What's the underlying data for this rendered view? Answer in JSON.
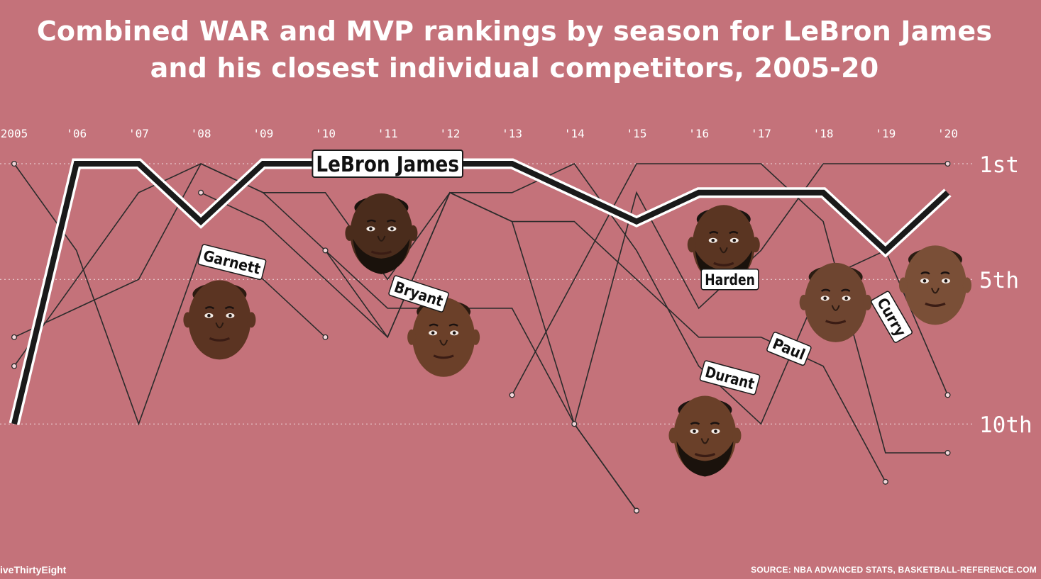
{
  "title_line1": "Combined WAR and MVP rankings by season for LeBron James",
  "title_line2": "and his closest individual competitors, 2005-20",
  "footer_left": "iveThirtyEight",
  "footer_right": "SOURCE: NBA ADVANCED STATS, BASKETBALL-REFERENCE.COM",
  "colors": {
    "background": "#c4727a",
    "lebron_line": "#1a1a1a",
    "competitor_line": "#2b2b2b",
    "label_fill": "#ffffff",
    "gridline": "#ffffff",
    "text": "#ffffff"
  },
  "chart_data": {
    "type": "line",
    "x_tick_labels": [
      "2005",
      "'06",
      "'07",
      "'08",
      "'09",
      "'10",
      "'11",
      "'12",
      "'13",
      "'14",
      "'15",
      "'16",
      "'17",
      "'18",
      "'19",
      "'20"
    ],
    "y_tick_labels": [
      {
        "rank": 1,
        "label": "1st"
      },
      {
        "rank": 5,
        "label": "5th"
      },
      {
        "rank": 10,
        "label": "10th"
      }
    ],
    "ylim": [
      1,
      13
    ],
    "y_inverted": true,
    "series": [
      {
        "name": "LeBron James",
        "highlight": true,
        "points": [
          [
            2005,
            10
          ],
          [
            2006,
            1
          ],
          [
            2007,
            1
          ],
          [
            2008,
            3
          ],
          [
            2009,
            1
          ],
          [
            2010,
            1
          ],
          [
            2011,
            1
          ],
          [
            2012,
            1
          ],
          [
            2013,
            1
          ],
          [
            2014,
            2
          ],
          [
            2015,
            3
          ],
          [
            2016,
            2
          ],
          [
            2017,
            2
          ],
          [
            2018,
            2
          ],
          [
            2019,
            4
          ],
          [
            2020,
            2
          ]
        ]
      },
      {
        "name": "Garnett",
        "points": [
          [
            2005,
            1
          ],
          [
            2006,
            4
          ],
          [
            2007,
            10
          ],
          [
            2008,
            4
          ],
          [
            2009,
            5
          ],
          [
            2010,
            7
          ]
        ]
      },
      {
        "name": "Bryant",
        "points": [
          [
            2005,
            8
          ],
          [
            2006,
            5
          ],
          [
            2007,
            2
          ],
          [
            2008,
            1
          ],
          [
            2009,
            2
          ],
          [
            2010,
            2
          ],
          [
            2011,
            5
          ],
          [
            2012,
            2
          ],
          [
            2013,
            3
          ],
          [
            2014,
            10
          ],
          [
            2015,
            13
          ]
        ]
      },
      {
        "name": "",
        "points": [
          [
            2005,
            7
          ],
          [
            2006,
            6
          ],
          [
            2007,
            5
          ],
          [
            2008,
            1
          ],
          [
            2009,
            2
          ],
          [
            2010,
            4
          ],
          [
            2011,
            6
          ],
          [
            2012,
            6
          ],
          [
            2013,
            6
          ],
          [
            2014,
            10
          ],
          [
            2015,
            13
          ]
        ]
      },
      {
        "name": "",
        "points": [
          [
            2008,
            2
          ],
          [
            2009,
            3
          ],
          [
            2010,
            5
          ],
          [
            2011,
            7
          ],
          [
            2012,
            2
          ],
          [
            2013,
            3
          ],
          [
            2014,
            3
          ],
          [
            2015,
            5
          ],
          [
            2016,
            7
          ],
          [
            2017,
            7
          ],
          [
            2018,
            8
          ],
          [
            2019,
            12
          ]
        ]
      },
      {
        "name": "",
        "points": [
          [
            2010,
            4
          ],
          [
            2011,
            7
          ],
          [
            2012,
            2
          ],
          [
            2013,
            2
          ],
          [
            2014,
            1
          ],
          [
            2015,
            4
          ],
          [
            2016,
            8
          ],
          [
            2017,
            10
          ],
          [
            2018,
            5
          ],
          [
            2019,
            4
          ],
          [
            2020,
            9
          ]
        ]
      },
      {
        "name": "",
        "points": [
          [
            2013,
            9
          ],
          [
            2014,
            5
          ],
          [
            2015,
            1
          ],
          [
            2016,
            1
          ],
          [
            2017,
            1
          ],
          [
            2018,
            3
          ],
          [
            2019,
            11
          ],
          [
            2020,
            11
          ]
        ]
      },
      {
        "name": "",
        "points": [
          [
            2014,
            10
          ],
          [
            2015,
            2
          ],
          [
            2016,
            6
          ],
          [
            2017,
            4
          ],
          [
            2018,
            1
          ],
          [
            2019,
            1
          ],
          [
            2020,
            1
          ]
        ]
      }
    ],
    "name_labels": [
      {
        "text": "LeBron James",
        "x": 2011,
        "rank": 1,
        "rotate": 0
      },
      {
        "text": "Garnett",
        "x": 2008.5,
        "rank": 4.4,
        "rotate": 14
      },
      {
        "text": "Bryant",
        "x": 2011.5,
        "rank": 5.5,
        "rotate": 18
      },
      {
        "text": "Harden",
        "x": 2016.5,
        "rank": 5,
        "rotate": 0
      },
      {
        "text": "Paul",
        "x": 2017.45,
        "rank": 7.4,
        "rotate": 22
      },
      {
        "text": "Durant",
        "x": 2016.5,
        "rank": 8.4,
        "rotate": 15
      },
      {
        "text": "Curry",
        "x": 2019.1,
        "rank": 6.3,
        "rotate": 60
      }
    ],
    "portraits": [
      {
        "name": "LeBron James",
        "x": 2010.9,
        "rank": 3.4,
        "skin": "#4a2c1c",
        "hair": "#1a120c",
        "beard": true
      },
      {
        "name": "Garnett",
        "x": 2008.3,
        "rank": 6.4,
        "skin": "#5b3422",
        "hair": "#2c1a10",
        "beard": false
      },
      {
        "name": "Bryant",
        "x": 2011.9,
        "rank": 7.0,
        "skin": "#6b4029",
        "hair": "#2a1a10",
        "beard": false
      },
      {
        "name": "Harden",
        "x": 2016.4,
        "rank": 3.8,
        "skin": "#5a3522",
        "hair": "#1a1410",
        "beard": true
      },
      {
        "name": "Paul",
        "x": 2018.2,
        "rank": 5.8,
        "skin": "#6e4530",
        "hair": "#2a1c12",
        "beard": false
      },
      {
        "name": "Durant",
        "x": 2016.1,
        "rank": 10.4,
        "skin": "#6a4029",
        "hair": "#1c1410",
        "beard": true
      },
      {
        "name": "Curry",
        "x": 2019.8,
        "rank": 5.2,
        "skin": "#7a4f37",
        "hair": "#2a1c12",
        "beard": false
      }
    ]
  }
}
